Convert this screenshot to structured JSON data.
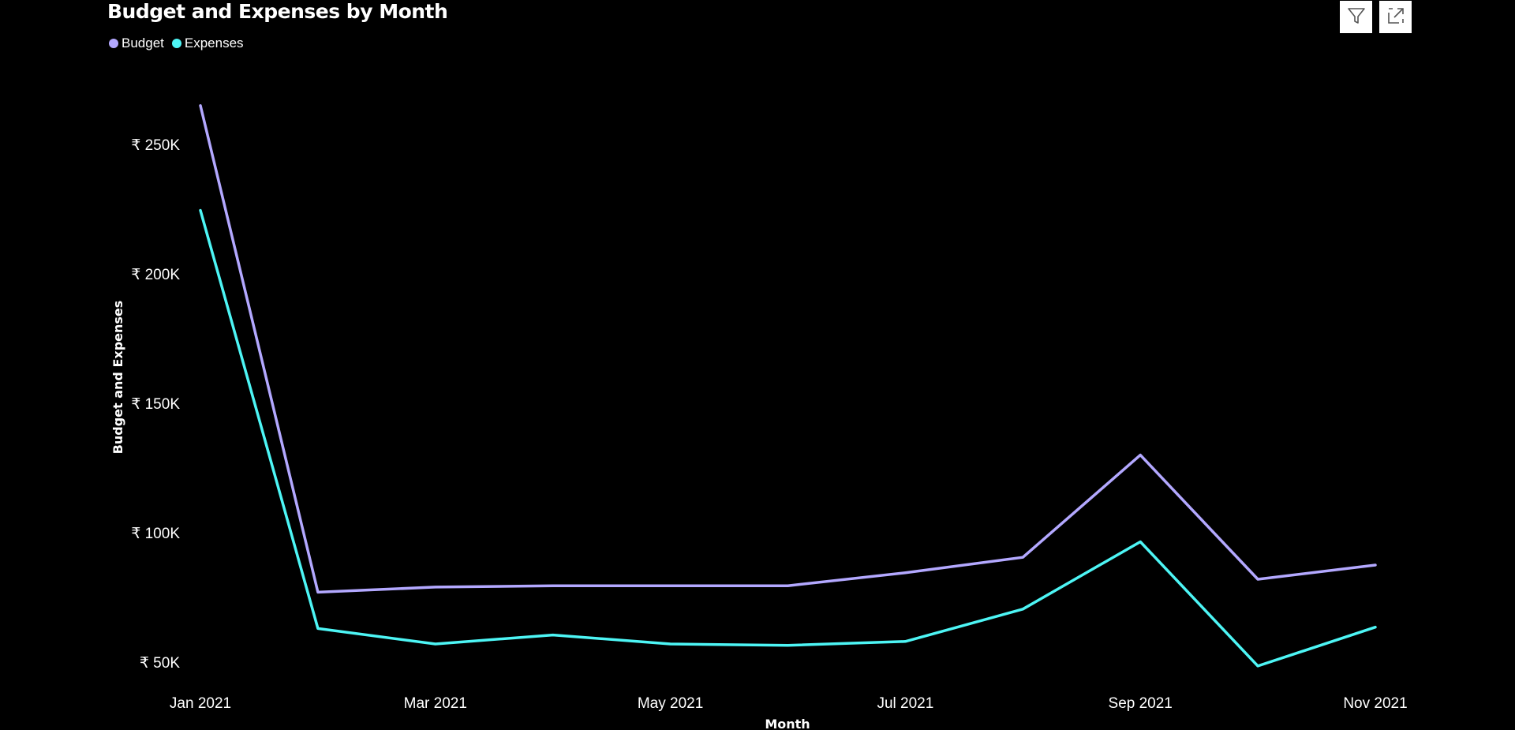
{
  "chart_data": {
    "type": "line",
    "title": "Budget and Expenses by Month",
    "xlabel": "Month",
    "ylabel": "Budget and Expenses",
    "x_tick_labels": [
      "Jan 2021",
      "Mar 2021",
      "May 2021",
      "Jul 2021",
      "Sep 2021",
      "Nov 2021"
    ],
    "y_tick_labels": [
      "₹ 50K",
      "₹ 100K",
      "₹ 150K",
      "₹ 200K",
      "₹ 250K"
    ],
    "y_ticks": [
      50000,
      100000,
      150000,
      200000,
      250000
    ],
    "ylim": [
      50000,
      250000
    ],
    "x": [
      "Jan 2021",
      "Feb 2021",
      "Mar 2021",
      "Apr 2021",
      "May 2021",
      "Jun 2021",
      "Jul 2021",
      "Aug 2021",
      "Sep 2021",
      "Oct 2021",
      "Nov 2021"
    ],
    "grid": false,
    "legend_position": "top-left",
    "series": [
      {
        "name": "Budget",
        "color": "#B3A8FF",
        "values": [
          265000,
          77000,
          79000,
          79500,
          79500,
          79500,
          84500,
          90500,
          130000,
          82000,
          87500
        ]
      },
      {
        "name": "Expenses",
        "color": "#4DF5F5",
        "values": [
          224500,
          63000,
          57000,
          60500,
          57000,
          56500,
          58000,
          70500,
          96500,
          48500,
          63500
        ]
      }
    ]
  },
  "toolbar": {
    "filter_icon": "filter-icon",
    "focus_icon": "focus-mode-icon"
  }
}
